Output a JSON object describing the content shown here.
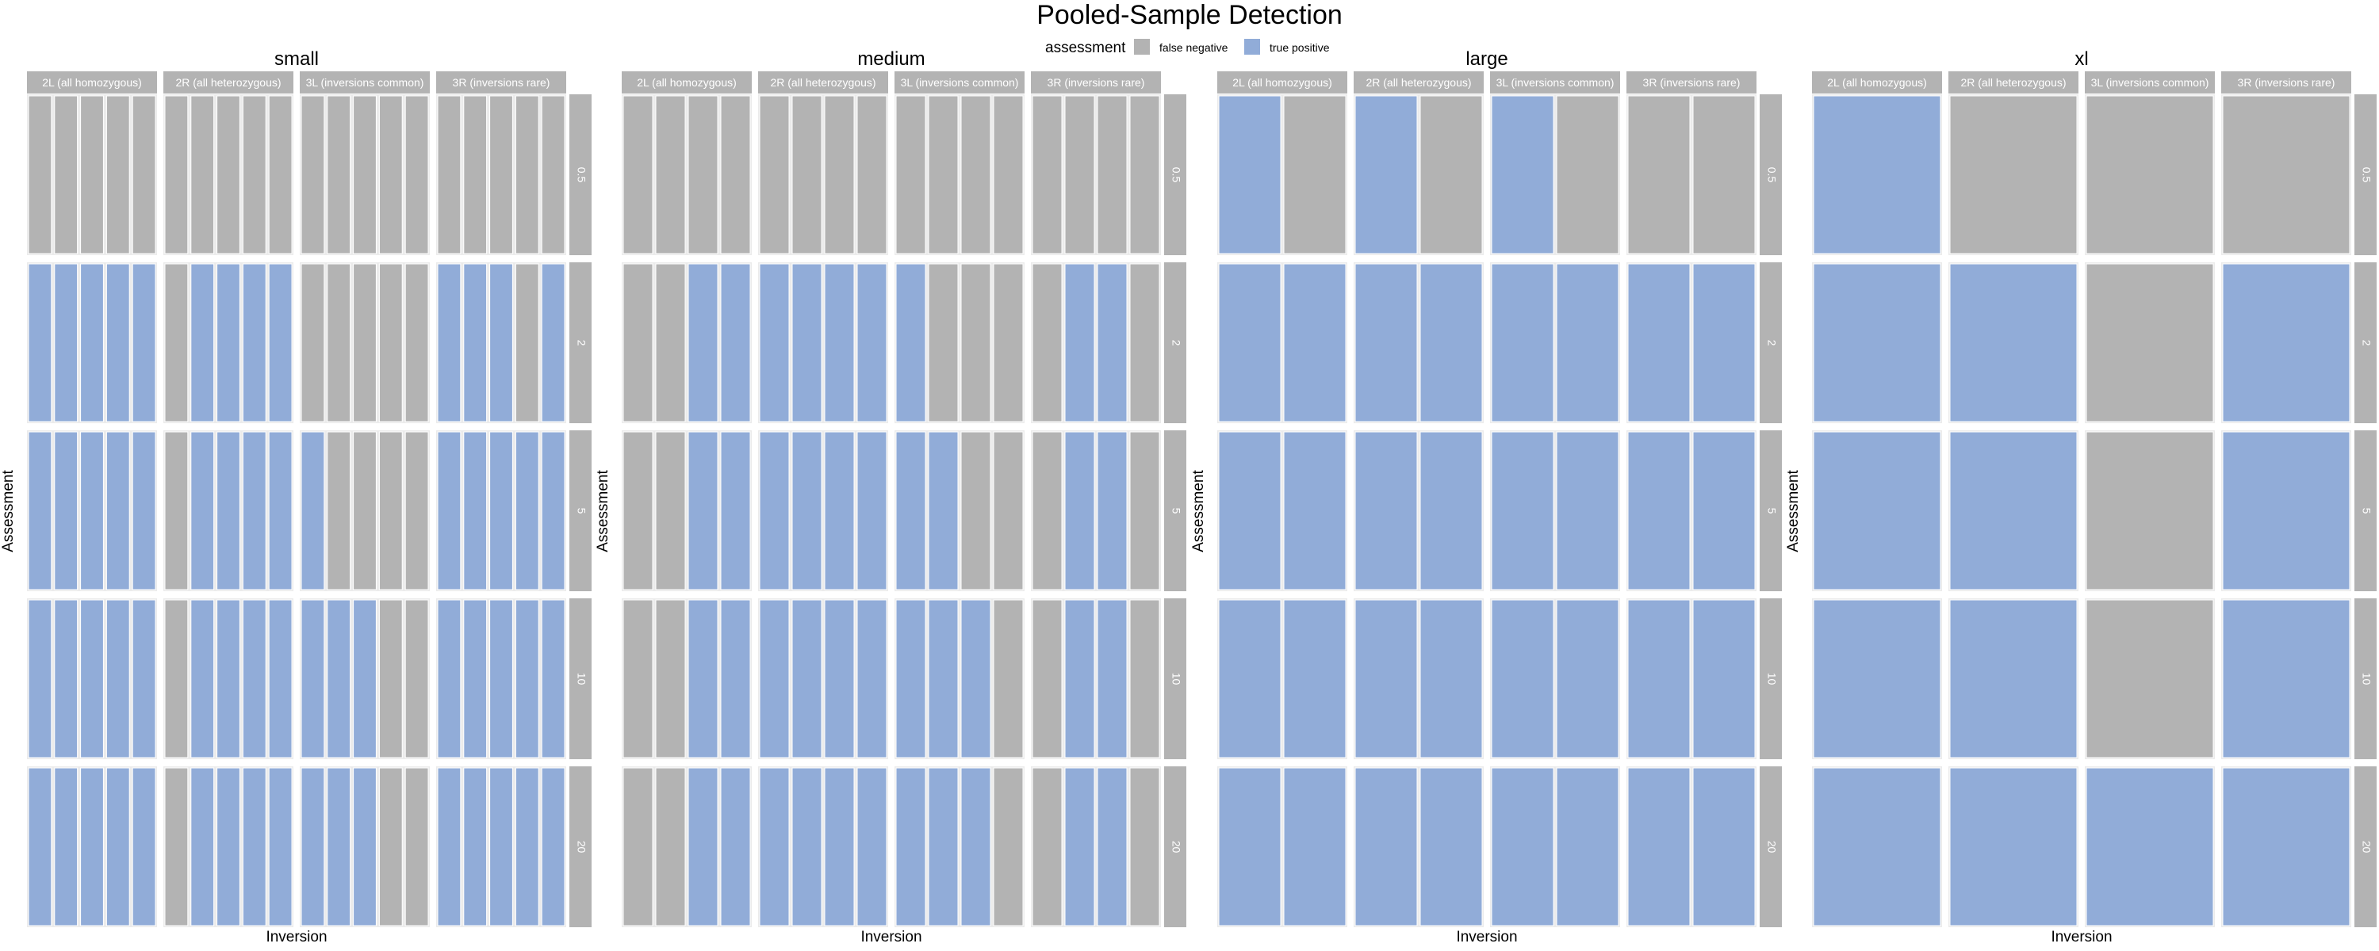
{
  "title": "Pooled-Sample Detection",
  "legend": {
    "title": "assessment",
    "placement": "top-center",
    "items": [
      {
        "label": "false negative",
        "color": "#b3b3b3"
      },
      {
        "label": "true positive",
        "color": "#91acd8"
      }
    ]
  },
  "colors": {
    "false_negative": "#b3b3b3",
    "true_positive": "#91acd8",
    "strip_fill": "#b3b3b3",
    "strip_text": "#ffffff",
    "panel_background": "#ebebeb",
    "cell_border": "#ffffff"
  },
  "chart_data": {
    "type": "heatmap",
    "title": "Pooled-Sample Detection",
    "xlabel": "Inversion",
    "ylabel": "Assessment",
    "row_labels": [
      "0.5",
      "2",
      "5",
      "10",
      "20"
    ],
    "column_labels": [
      "2L (all homozygous)",
      "2R (all heterozygous)",
      "3L (inversions common)",
      "3R (inversions rare)"
    ],
    "value_codes": {
      "0": "false negative",
      "1": "true positive"
    },
    "pool_sizes": [
      {
        "name": "small",
        "cells": [
          [
            [
              0,
              0,
              0,
              0,
              0
            ],
            [
              0,
              0,
              0,
              0,
              0
            ],
            [
              0,
              0,
              0,
              0,
              0
            ],
            [
              0,
              0,
              0,
              0,
              0
            ]
          ],
          [
            [
              1,
              1,
              1,
              1,
              1
            ],
            [
              0,
              1,
              1,
              1,
              1
            ],
            [
              0,
              0,
              0,
              0,
              0
            ],
            [
              1,
              1,
              1,
              0,
              1
            ]
          ],
          [
            [
              1,
              1,
              1,
              1,
              1
            ],
            [
              0,
              1,
              1,
              1,
              1
            ],
            [
              1,
              0,
              0,
              0,
              0
            ],
            [
              1,
              1,
              1,
              1,
              1
            ]
          ],
          [
            [
              1,
              1,
              1,
              1,
              1
            ],
            [
              0,
              1,
              1,
              1,
              1
            ],
            [
              1,
              1,
              1,
              0,
              0
            ],
            [
              1,
              1,
              1,
              1,
              1
            ]
          ],
          [
            [
              1,
              1,
              1,
              1,
              1
            ],
            [
              0,
              1,
              1,
              1,
              1
            ],
            [
              1,
              1,
              1,
              0,
              0
            ],
            [
              1,
              1,
              1,
              1,
              1
            ]
          ]
        ]
      },
      {
        "name": "medium",
        "cells": [
          [
            [
              0,
              0,
              0,
              0
            ],
            [
              0,
              0,
              0,
              0
            ],
            [
              0,
              0,
              0,
              0
            ],
            [
              0,
              0,
              0,
              0
            ]
          ],
          [
            [
              0,
              0,
              1,
              1
            ],
            [
              1,
              1,
              1,
              1
            ],
            [
              1,
              0,
              0,
              0
            ],
            [
              0,
              1,
              1,
              0
            ]
          ],
          [
            [
              0,
              0,
              1,
              1
            ],
            [
              1,
              1,
              1,
              1
            ],
            [
              1,
              1,
              0,
              0
            ],
            [
              0,
              1,
              1,
              0
            ]
          ],
          [
            [
              0,
              0,
              1,
              1
            ],
            [
              1,
              1,
              1,
              1
            ],
            [
              1,
              1,
              1,
              0
            ],
            [
              0,
              1,
              1,
              0
            ]
          ],
          [
            [
              0,
              0,
              1,
              1
            ],
            [
              1,
              1,
              1,
              1
            ],
            [
              1,
              1,
              1,
              0
            ],
            [
              0,
              1,
              1,
              0
            ]
          ]
        ]
      },
      {
        "name": "large",
        "cells": [
          [
            [
              1,
              0
            ],
            [
              1,
              0
            ],
            [
              1,
              0
            ],
            [
              0,
              0
            ]
          ],
          [
            [
              1,
              1
            ],
            [
              1,
              1
            ],
            [
              1,
              1
            ],
            [
              1,
              1
            ]
          ],
          [
            [
              1,
              1
            ],
            [
              1,
              1
            ],
            [
              1,
              1
            ],
            [
              1,
              1
            ]
          ],
          [
            [
              1,
              1
            ],
            [
              1,
              1
            ],
            [
              1,
              1
            ],
            [
              1,
              1
            ]
          ],
          [
            [
              1,
              1
            ],
            [
              1,
              1
            ],
            [
              1,
              1
            ],
            [
              1,
              1
            ]
          ]
        ]
      },
      {
        "name": "xl",
        "cells": [
          [
            [
              1
            ],
            [
              0
            ],
            [
              0
            ],
            [
              0
            ]
          ],
          [
            [
              1
            ],
            [
              1
            ],
            [
              0
            ],
            [
              1
            ]
          ],
          [
            [
              1
            ],
            [
              1
            ],
            [
              0
            ],
            [
              1
            ]
          ],
          [
            [
              1
            ],
            [
              1
            ],
            [
              0
            ],
            [
              1
            ]
          ],
          [
            [
              1
            ],
            [
              1
            ],
            [
              1
            ],
            [
              1
            ]
          ]
        ]
      }
    ]
  }
}
